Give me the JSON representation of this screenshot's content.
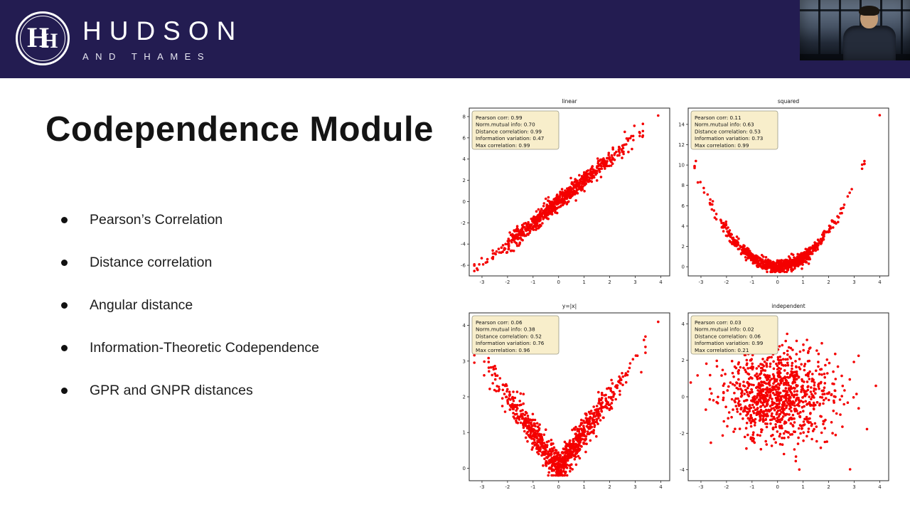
{
  "header": {
    "brand_line1": "HUDSON",
    "brand_line2": "AND THAMES",
    "monogram_left": "H",
    "monogram_right": "H",
    "bg_color": "#231c51"
  },
  "slide": {
    "title": "Codependence Module",
    "bullets": [
      "Pearson’s Correlation",
      "Distance correlation",
      "Angular distance",
      "Information-Theoretic Codependence",
      "GPR and GNPR distances"
    ]
  },
  "chart_data": [
    {
      "id": "linear",
      "type": "scatter",
      "title": "linear",
      "relation": "linear",
      "seed": 11,
      "n_points": 750,
      "point_color": "#f40000",
      "xlim": [
        -3.5,
        4.35
      ],
      "ylim": [
        -7.0,
        8.8
      ],
      "x_ticks": [
        -3,
        -2,
        -1,
        0,
        1,
        2,
        3,
        4
      ],
      "y_ticks": [
        -6,
        -4,
        -2,
        0,
        2,
        4,
        6,
        8
      ],
      "outliers": [
        [
          3.9,
          8.1
        ],
        [
          -3.2,
          -6.3
        ]
      ],
      "stats_box": {
        "bg": "#f8eecb",
        "border": "#9a9a86"
      },
      "stats": [
        "Pearson corr: 0.99",
        "Norm.mutual info: 0.70",
        "Distance correlation: 0.99",
        "Information variation: 0.47",
        "Max correlation: 0.99"
      ]
    },
    {
      "id": "squared",
      "type": "scatter",
      "title": "squared",
      "relation": "squared",
      "seed": 22,
      "n_points": 820,
      "point_color": "#f40000",
      "xlim": [
        -3.5,
        4.35
      ],
      "ylim": [
        -0.9,
        15.6
      ],
      "x_ticks": [
        -3,
        -2,
        -1,
        0,
        1,
        2,
        3,
        4
      ],
      "y_ticks": [
        0,
        2,
        4,
        6,
        8,
        10,
        12,
        14
      ],
      "outliers": [
        [
          4.0,
          14.9
        ],
        [
          -3.2,
          10.4
        ]
      ],
      "stats_box": {
        "bg": "#f8eecb",
        "border": "#9a9a86"
      },
      "stats": [
        "Pearson corr: 0.11",
        "Norm.mutual info: 0.63",
        "Distance correlation: 0.53",
        "Information variation: 0.73",
        "Max correlation: 0.99"
      ]
    },
    {
      "id": "abs",
      "type": "scatter",
      "title": "y=|x|",
      "relation": "abs",
      "seed": 33,
      "n_points": 900,
      "point_color": "#f40000",
      "xlim": [
        -3.5,
        4.35
      ],
      "ylim": [
        -0.35,
        4.35
      ],
      "x_ticks": [
        -3,
        -2,
        -1,
        0,
        1,
        2,
        3,
        4
      ],
      "y_ticks": [
        0,
        1,
        2,
        3,
        4
      ],
      "outliers": [
        [
          3.9,
          4.1
        ]
      ],
      "stats_box": {
        "bg": "#f8eecb",
        "border": "#9a9a86"
      },
      "stats": [
        "Pearson corr: 0.06",
        "Norm.mutual info: 0.38",
        "Distance correlation: 0.52",
        "Information variation: 0.76",
        "Max correlation: 0.96"
      ]
    },
    {
      "id": "independent",
      "type": "scatter",
      "title": "independent",
      "relation": "independent",
      "seed": 44,
      "n_points": 1000,
      "point_color": "#f40000",
      "xlim": [
        -3.5,
        4.35
      ],
      "ylim": [
        -4.6,
        4.6
      ],
      "x_ticks": [
        -3,
        -2,
        -1,
        0,
        1,
        2,
        3,
        4
      ],
      "y_ticks": [
        -4,
        -2,
        0,
        2,
        4
      ],
      "outliers": [
        [
          3.85,
          0.6
        ]
      ],
      "stats_box": {
        "bg": "#f8eecb",
        "border": "#9a9a86"
      },
      "stats": [
        "Pearson corr: 0.03",
        "Norm.mutual info: 0.02",
        "Distance correlation: 0.06",
        "Information variation: 0.99",
        "Max correlation: 0.21"
      ]
    }
  ]
}
